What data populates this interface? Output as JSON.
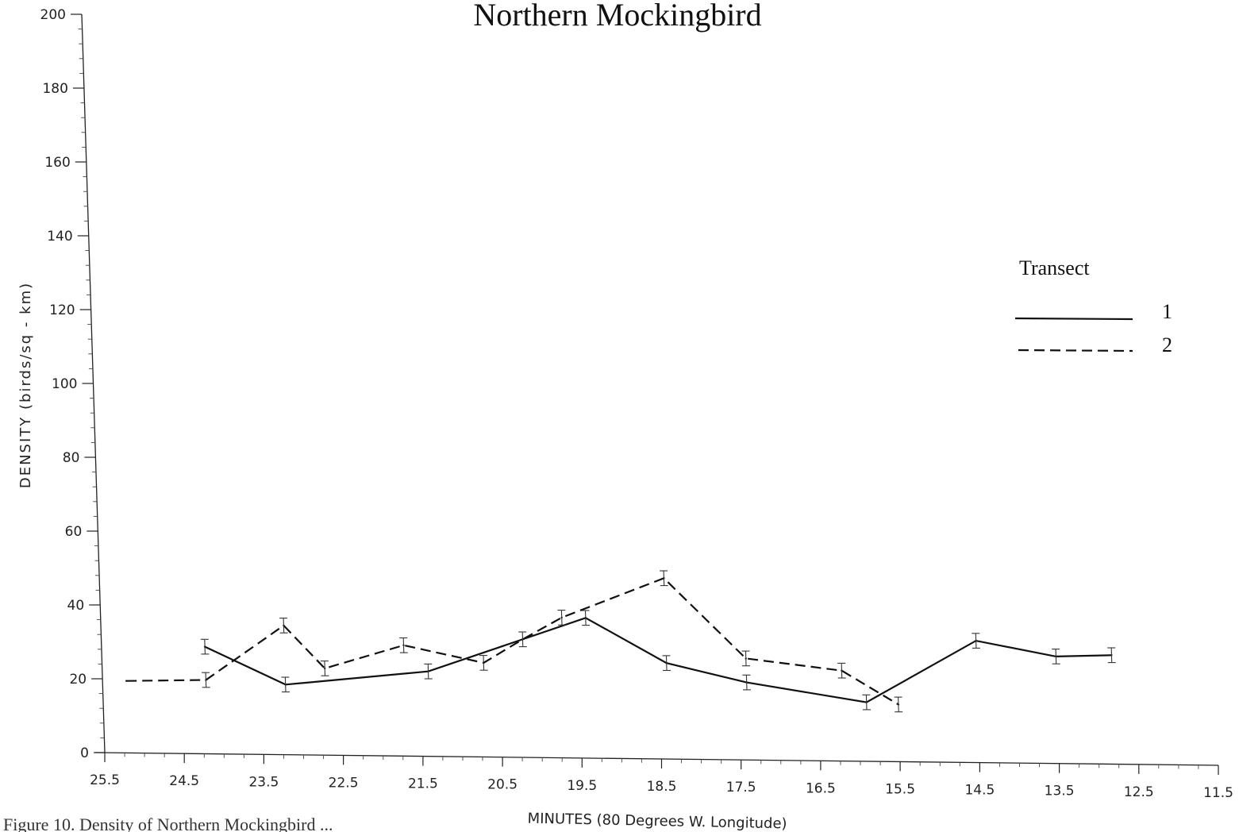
{
  "caption": "Figure 10. Density of Northern Mockingbird ...",
  "chart_data": {
    "type": "line",
    "title": "Northern Mockingbird",
    "xlabel": "MINUTES (80 Degrees W. Longitude)",
    "ylabel": "DENSITY (birds/sq - km)",
    "x_reversed": true,
    "xlim": [
      25.5,
      11.5
    ],
    "ylim": [
      0,
      200
    ],
    "x_ticks": [
      "25.5",
      "24.5",
      "23.5",
      "22.5",
      "21.5",
      "20.5",
      "19.5",
      "18.5",
      "17.5",
      "16.5",
      "15.5",
      "14.5",
      "13.5",
      "12.5",
      "11.5"
    ],
    "y_ticks": [
      "0",
      "20",
      "40",
      "60",
      "80",
      "100",
      "120",
      "140",
      "160",
      "180",
      "200"
    ],
    "grid": false,
    "legend": {
      "title": "Transect",
      "position": "right"
    },
    "error_bars": true,
    "series": [
      {
        "name": "1",
        "line_style": "solid",
        "x": [
          24.2,
          23.2,
          21.4,
          19.4,
          18.4,
          17.4,
          15.9,
          14.5,
          13.5,
          12.8
        ],
        "y": [
          29,
          19,
          23,
          38,
          26,
          21,
          16,
          33,
          29,
          29.5
        ],
        "error": [
          2,
          2,
          2,
          2,
          2,
          2,
          2,
          2,
          2,
          2
        ]
      },
      {
        "name": "2",
        "line_style": "dashed",
        "x": [
          25.2,
          24.2,
          23.2,
          22.7,
          21.7,
          20.7,
          20.2,
          19.7,
          18.4,
          17.4,
          16.2,
          15.5
        ],
        "y": [
          19.5,
          20,
          35,
          23.5,
          30,
          25.5,
          32,
          38,
          49,
          27.5,
          24.5,
          15.5
        ],
        "error": [
          0,
          2,
          2,
          2,
          2,
          2,
          2,
          2,
          2,
          2,
          2,
          2
        ]
      }
    ]
  }
}
